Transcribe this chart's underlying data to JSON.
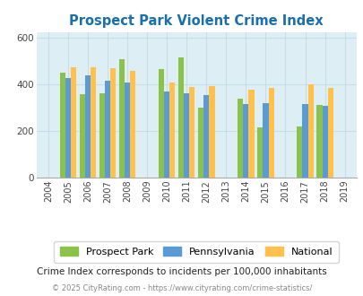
{
  "title": "Prospect Park Violent Crime Index",
  "subtitle": "Crime Index corresponds to incidents per 100,000 inhabitants",
  "footer": "© 2025 CityRating.com - https://www.cityrating.com/crime-statistics/",
  "years": [
    2004,
    2005,
    2006,
    2007,
    2008,
    2009,
    2010,
    2011,
    2012,
    2013,
    2014,
    2015,
    2016,
    2017,
    2018,
    2019
  ],
  "prospect_park": [
    null,
    450,
    355,
    360,
    505,
    null,
    463,
    513,
    298,
    null,
    338,
    215,
    null,
    218,
    310,
    null
  ],
  "pennsylvania": [
    null,
    425,
    438,
    415,
    408,
    null,
    370,
    360,
    352,
    null,
    315,
    318,
    null,
    315,
    305,
    null
  ],
  "national": [
    null,
    470,
    473,
    467,
    458,
    null,
    405,
    387,
    390,
    null,
    376,
    383,
    null,
    397,
    383,
    null
  ],
  "bar_width": 0.28,
  "ylim": [
    0,
    620
  ],
  "yticks": [
    0,
    200,
    400,
    600
  ],
  "color_pp": "#8bc34a",
  "color_pa": "#5b9bd5",
  "color_na": "#ffc04c",
  "bg_color": "#deeef5",
  "title_color": "#1a6fad",
  "subtitle_color": "#222222",
  "footer_color": "#888888",
  "grid_color": "#c8dde8"
}
